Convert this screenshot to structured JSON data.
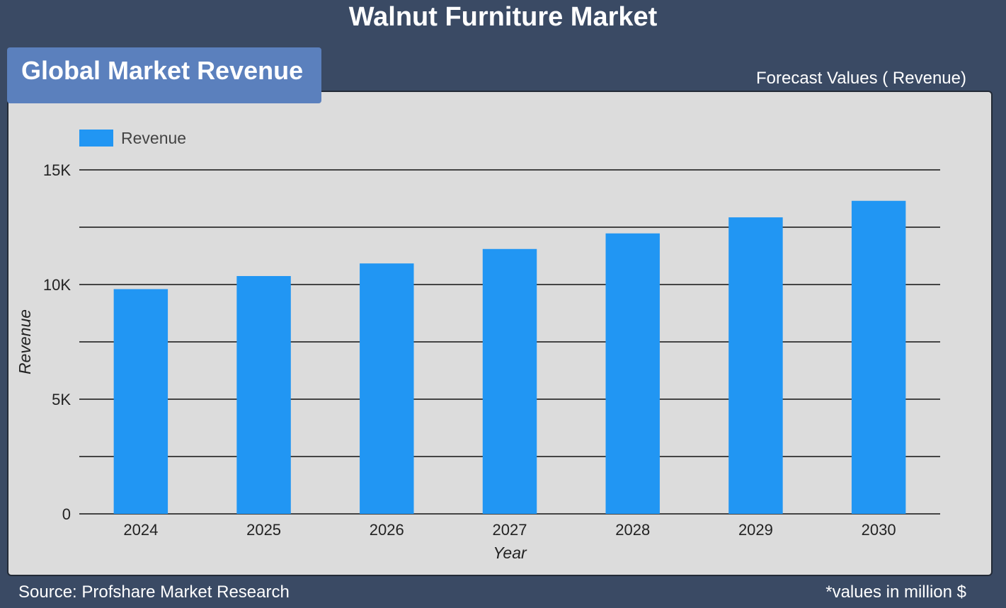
{
  "page": {
    "title": "Walnut Furniture Market",
    "section_label": "Global Market Revenue",
    "forecast_label": "Forecast Values ( Revenue)",
    "source": "Source: Profshare Market Research",
    "note": "*values in million $"
  },
  "colors": {
    "background": "#3a4a64",
    "panel": "#dcdcdc",
    "section_label_bg": "#5b80bd",
    "bar": "#2196f3",
    "gridline": "#111111"
  },
  "chart_data": {
    "type": "bar",
    "categories": [
      "2024",
      "2025",
      "2026",
      "2027",
      "2028",
      "2029",
      "2030"
    ],
    "series": [
      {
        "name": "Revenue",
        "values": [
          9800,
          10370,
          10920,
          11550,
          12230,
          12930,
          13650
        ]
      }
    ],
    "xlabel": "Year",
    "ylabel": "Revenue",
    "ylim": [
      0,
      15000
    ],
    "yticks": [
      0,
      5000,
      10000,
      15000
    ],
    "ytick_labels": [
      "0",
      "5K",
      "10K",
      "15K"
    ],
    "grid": true,
    "legend_position": "top-left"
  }
}
